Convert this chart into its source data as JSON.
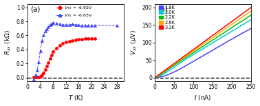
{
  "panel_a": {
    "xlabel": "T (K)",
    "xlim": [
      0,
      30
    ],
    "ylim": [
      -0.05,
      1.05
    ],
    "yticks": [
      0.0,
      0.2,
      0.4,
      0.6,
      0.8,
      1.0
    ],
    "xticks": [
      0,
      4,
      8,
      12,
      16,
      20,
      24,
      28
    ],
    "series": [
      {
        "label": "V_{TG} = -6.92V",
        "color": "#ff0000",
        "marker": "o",
        "T": [
          2.0,
          2.5,
          3.0,
          3.5,
          4.0,
          4.5,
          5.0,
          5.5,
          6.0,
          6.5,
          7.0,
          7.5,
          8.0,
          9.0,
          10.0,
          11.0,
          12.0,
          13.0,
          14.0,
          15.0,
          16.0,
          17.0,
          18.0,
          19.0,
          20.0,
          21.0
        ],
        "R": [
          0.003,
          0.003,
          0.003,
          0.008,
          0.018,
          0.038,
          0.068,
          0.11,
          0.165,
          0.215,
          0.27,
          0.32,
          0.365,
          0.415,
          0.455,
          0.485,
          0.505,
          0.515,
          0.525,
          0.535,
          0.542,
          0.547,
          0.552,
          0.553,
          0.553,
          0.553
        ]
      },
      {
        "label": "V_{TG} = -6.65V",
        "color": "#4444ff",
        "marker": "^",
        "T": [
          2.0,
          2.5,
          3.0,
          3.5,
          4.0,
          4.5,
          5.0,
          5.5,
          6.0,
          6.5,
          7.0,
          7.5,
          8.0,
          9.0,
          10.0,
          11.0,
          12.0,
          13.0,
          14.0,
          15.0,
          16.0,
          17.0,
          18.0,
          19.0,
          20.0,
          21.0,
          28.0
        ],
        "R": [
          -0.02,
          0.04,
          0.1,
          0.22,
          0.38,
          0.53,
          0.6,
          0.66,
          0.695,
          0.725,
          0.75,
          0.765,
          0.785,
          0.775,
          0.765,
          0.755,
          0.748,
          0.752,
          0.758,
          0.752,
          0.748,
          0.742,
          0.742,
          0.742,
          0.742,
          0.742,
          0.742
        ]
      }
    ]
  },
  "panel_b": {
    "xlabel": "I (nA)",
    "xlim": [
      0,
      250
    ],
    "ylim": [
      -10,
      210
    ],
    "yticks": [
      0,
      50,
      100,
      150,
      200
    ],
    "xticks": [
      0,
      50,
      100,
      150,
      200,
      250
    ],
    "series": [
      {
        "label": "1.8K",
        "color": "#4444ff",
        "V_at_250": 140.0,
        "critical_I": 60.0
      },
      {
        "label": "2.0K",
        "color": "#00cccc",
        "V_at_250": 165.0,
        "critical_I": 20.0
      },
      {
        "label": "2.2K",
        "color": "#00bb00",
        "V_at_250": 178.0,
        "critical_I": 10.0
      },
      {
        "label": "2.6K",
        "color": "#ffaa00",
        "V_at_250": 190.0,
        "critical_I": 5.0
      },
      {
        "label": "3.3K",
        "color": "#ff0000",
        "V_at_250": 200.0,
        "critical_I": 1.0
      }
    ]
  }
}
